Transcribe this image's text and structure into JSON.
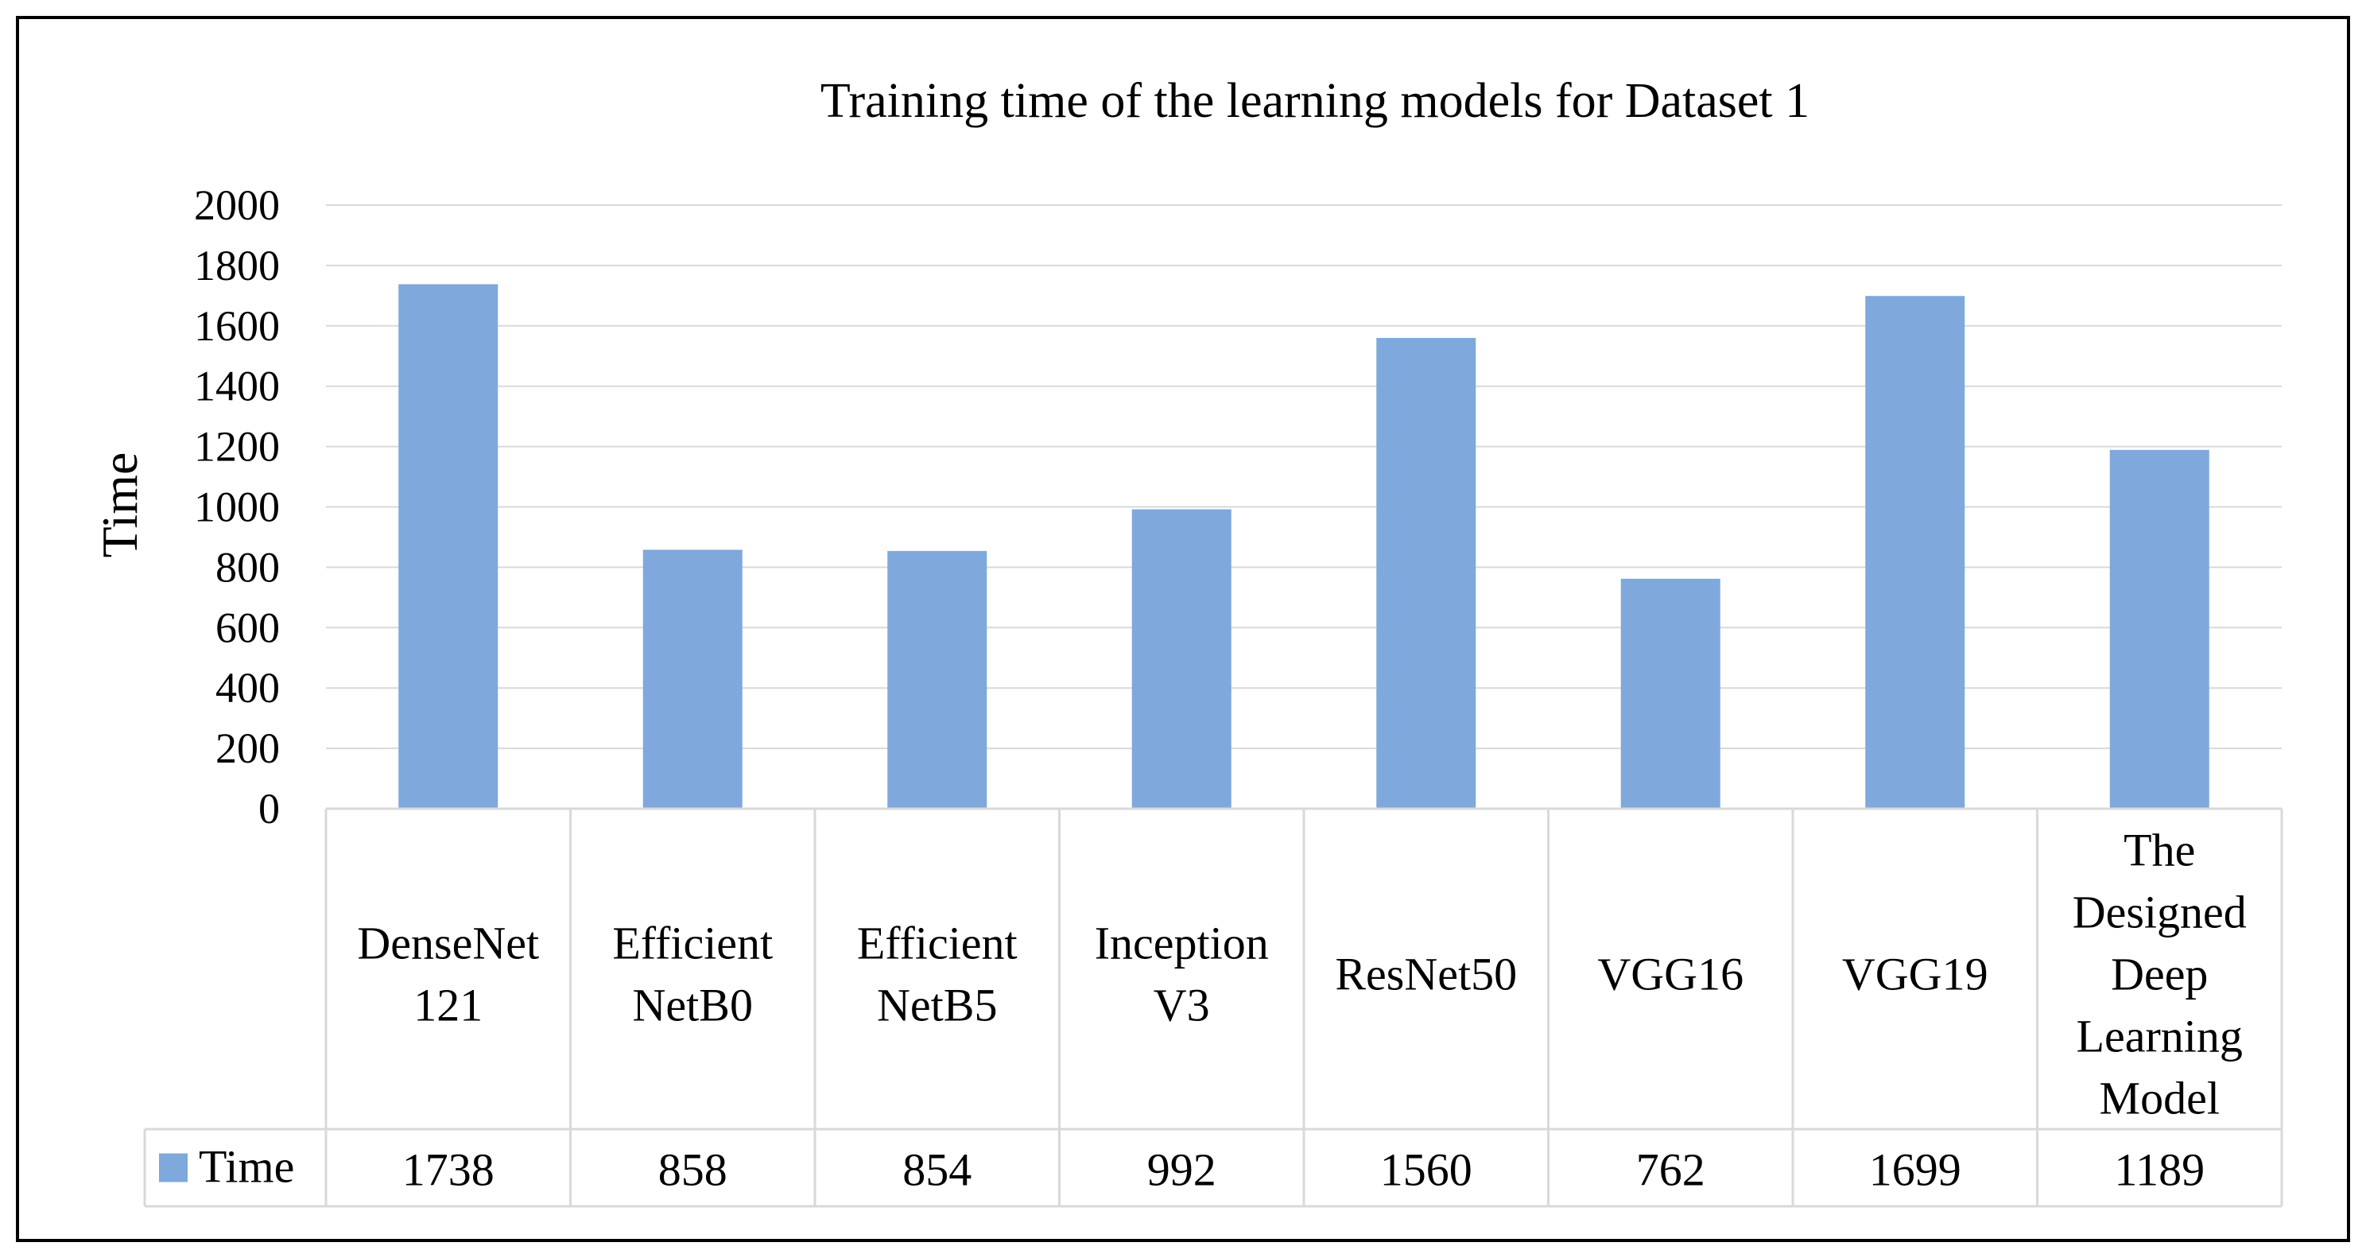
{
  "chart_data": {
    "type": "bar",
    "title": "Training time of the learning models for Dataset 1",
    "xlabel": "",
    "ylabel": "Time",
    "ylim": [
      0,
      2000
    ],
    "yticks": [
      0,
      200,
      400,
      600,
      800,
      1000,
      1200,
      1400,
      1600,
      1800,
      2000
    ],
    "grid": true,
    "legend": "data-table",
    "categories": [
      [
        "DenseNet",
        "121"
      ],
      [
        "Efficient",
        "NetB0"
      ],
      [
        "Efficient",
        "NetB5"
      ],
      [
        "Inception",
        "V3"
      ],
      [
        "ResNet50"
      ],
      [
        "VGG16"
      ],
      [
        "VGG19"
      ],
      [
        "The",
        "Designed",
        "Deep",
        "Learning",
        "Model"
      ]
    ],
    "series": [
      {
        "name": "Time",
        "color": "#7fa8dc",
        "values": [
          1738,
          858,
          854,
          992,
          1560,
          762,
          1699,
          1189
        ]
      }
    ]
  }
}
